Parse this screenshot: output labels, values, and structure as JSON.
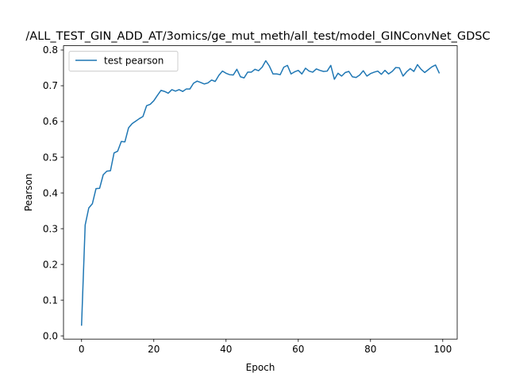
{
  "chart_data": {
    "type": "line",
    "title": "/ALL_TEST_GIN_ADD_AT/3omics/ge_mut_meth/all_test/model_GINConvNet_GDSC",
    "xlabel": "Epoch",
    "ylabel": "Pearson",
    "xlim": [
      -5,
      104
    ],
    "ylim": [
      -0.009,
      0.812
    ],
    "xticks": [
      0,
      20,
      40,
      60,
      80,
      100
    ],
    "yticks": [
      0.0,
      0.1,
      0.2,
      0.3,
      0.4,
      0.5,
      0.6,
      0.7,
      0.8
    ],
    "xtick_labels": [
      "0",
      "20",
      "40",
      "60",
      "80",
      "100"
    ],
    "ytick_labels": [
      "0.0",
      "0.1",
      "0.2",
      "0.3",
      "0.4",
      "0.5",
      "0.6",
      "0.7",
      "0.8"
    ],
    "grid": false,
    "legend_position": "upper-left",
    "series": [
      {
        "name": "test pearson",
        "color": "#1f77b4",
        "x": [
          0,
          1,
          2,
          3,
          4,
          5,
          6,
          7,
          8,
          9,
          10,
          11,
          12,
          13,
          14,
          15,
          16,
          17,
          18,
          19,
          20,
          21,
          22,
          23,
          24,
          25,
          26,
          27,
          28,
          29,
          30,
          31,
          32,
          33,
          34,
          35,
          36,
          37,
          38,
          39,
          40,
          41,
          42,
          43,
          44,
          45,
          46,
          47,
          48,
          49,
          50,
          51,
          52,
          53,
          54,
          55,
          56,
          57,
          58,
          59,
          60,
          61,
          62,
          63,
          64,
          65,
          66,
          67,
          68,
          69,
          70,
          71,
          72,
          73,
          74,
          75,
          76,
          77,
          78,
          79,
          80,
          81,
          82,
          83,
          84,
          85,
          86,
          87,
          88,
          89,
          90,
          91,
          92,
          93,
          94,
          95,
          96,
          97,
          98,
          99
        ],
        "y": [
          0.03,
          0.31,
          0.358,
          0.37,
          0.412,
          0.413,
          0.451,
          0.461,
          0.462,
          0.512,
          0.517,
          0.544,
          0.543,
          0.582,
          0.594,
          0.601,
          0.608,
          0.614,
          0.644,
          0.648,
          0.658,
          0.673,
          0.687,
          0.684,
          0.679,
          0.689,
          0.685,
          0.689,
          0.684,
          0.691,
          0.691,
          0.707,
          0.713,
          0.709,
          0.705,
          0.708,
          0.716,
          0.712,
          0.729,
          0.741,
          0.735,
          0.731,
          0.73,
          0.746,
          0.725,
          0.722,
          0.738,
          0.738,
          0.746,
          0.742,
          0.752,
          0.77,
          0.755,
          0.733,
          0.733,
          0.731,
          0.752,
          0.757,
          0.733,
          0.739,
          0.743,
          0.733,
          0.749,
          0.741,
          0.738,
          0.747,
          0.743,
          0.74,
          0.741,
          0.757,
          0.718,
          0.735,
          0.727,
          0.737,
          0.74,
          0.725,
          0.723,
          0.73,
          0.742,
          0.727,
          0.734,
          0.738,
          0.741,
          0.732,
          0.743,
          0.733,
          0.74,
          0.751,
          0.75,
          0.727,
          0.739,
          0.748,
          0.74,
          0.759,
          0.746,
          0.737,
          0.745,
          0.753,
          0.758,
          0.736
        ]
      }
    ]
  }
}
